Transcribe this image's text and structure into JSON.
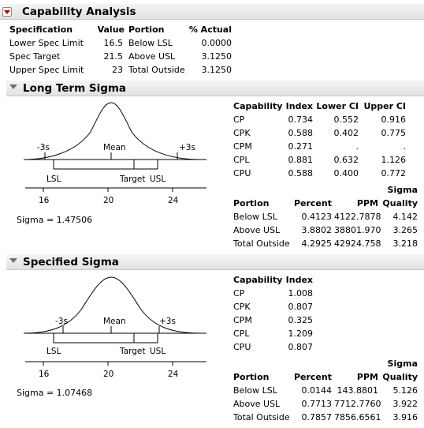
{
  "main": {
    "title": "Capability Analysis",
    "spec_table": {
      "headers": [
        "Specification",
        "Value",
        "Portion",
        "% Actual"
      ],
      "rows": [
        [
          "Lower Spec Limit",
          "16.5",
          "Below LSL",
          "0.0000"
        ],
        [
          "Spec Target",
          "21.5",
          "Above USL",
          "3.1250"
        ],
        [
          "Upper Spec Limit",
          "23",
          "Total Outside",
          "3.1250"
        ]
      ]
    }
  },
  "long_term": {
    "title": "Long Term Sigma",
    "plot": {
      "minus3s": "-3s",
      "mean": "Mean",
      "plus3s": "+3s",
      "lsl": "LSL",
      "target": "Target",
      "usl": "USL",
      "ticks": [
        "16",
        "20",
        "24"
      ]
    },
    "sigma_text": "Sigma = 1.47506",
    "capability": {
      "headers": [
        "Capability",
        "Index",
        "Lower CI",
        "Upper CI"
      ],
      "rows": [
        [
          "CP",
          "0.734",
          "0.552",
          "0.916"
        ],
        [
          "CPK",
          "0.588",
          "0.402",
          "0.775"
        ],
        [
          "CPM",
          "0.271",
          ".",
          "."
        ],
        [
          "CPL",
          "0.881",
          "0.632",
          "1.126"
        ],
        [
          "CPU",
          "0.588",
          "0.400",
          "0.772"
        ]
      ]
    },
    "portion": {
      "sigma_header": "Sigma",
      "headers": [
        "Portion",
        "Percent",
        "PPM",
        "Quality"
      ],
      "rows": [
        [
          "Below LSL",
          "0.4123",
          "4122.7878",
          "4.142"
        ],
        [
          "Above USL",
          "3.8802",
          "38801.970",
          "3.265"
        ],
        [
          "Total Outside",
          "4.2925",
          "42924.758",
          "3.218"
        ]
      ]
    }
  },
  "specified": {
    "title": "Specified Sigma",
    "plot": {
      "minus3s": "-3s",
      "mean": "Mean",
      "plus3s": "+3s",
      "lsl": "LSL",
      "target": "Target",
      "usl": "USL",
      "ticks": [
        "16",
        "20",
        "24"
      ]
    },
    "sigma_text": "Sigma = 1.07468",
    "capability": {
      "headers": [
        "Capability",
        "Index"
      ],
      "rows": [
        [
          "CP",
          "1.008"
        ],
        [
          "CPK",
          "0.807"
        ],
        [
          "CPM",
          "0.325"
        ],
        [
          "CPL",
          "1.209"
        ],
        [
          "CPU",
          "0.807"
        ]
      ]
    },
    "portion": {
      "sigma_header": "Sigma",
      "headers": [
        "Portion",
        "Percent",
        "PPM",
        "Quality"
      ],
      "rows": [
        [
          "Below LSL",
          "0.0144",
          "143.8801",
          "5.126"
        ],
        [
          "Above USL",
          "0.7713",
          "7712.7760",
          "3.922"
        ],
        [
          "Total Outside",
          "0.7857",
          "7856.6561",
          "3.916"
        ]
      ]
    }
  },
  "colors": {
    "accent": "#c00000",
    "header_bg": "#e8e8e8",
    "curve": "#000000"
  },
  "icons": {
    "main_toggle": "red-disclosure-triangle",
    "section_toggle": "gray-disclosure-triangle"
  }
}
